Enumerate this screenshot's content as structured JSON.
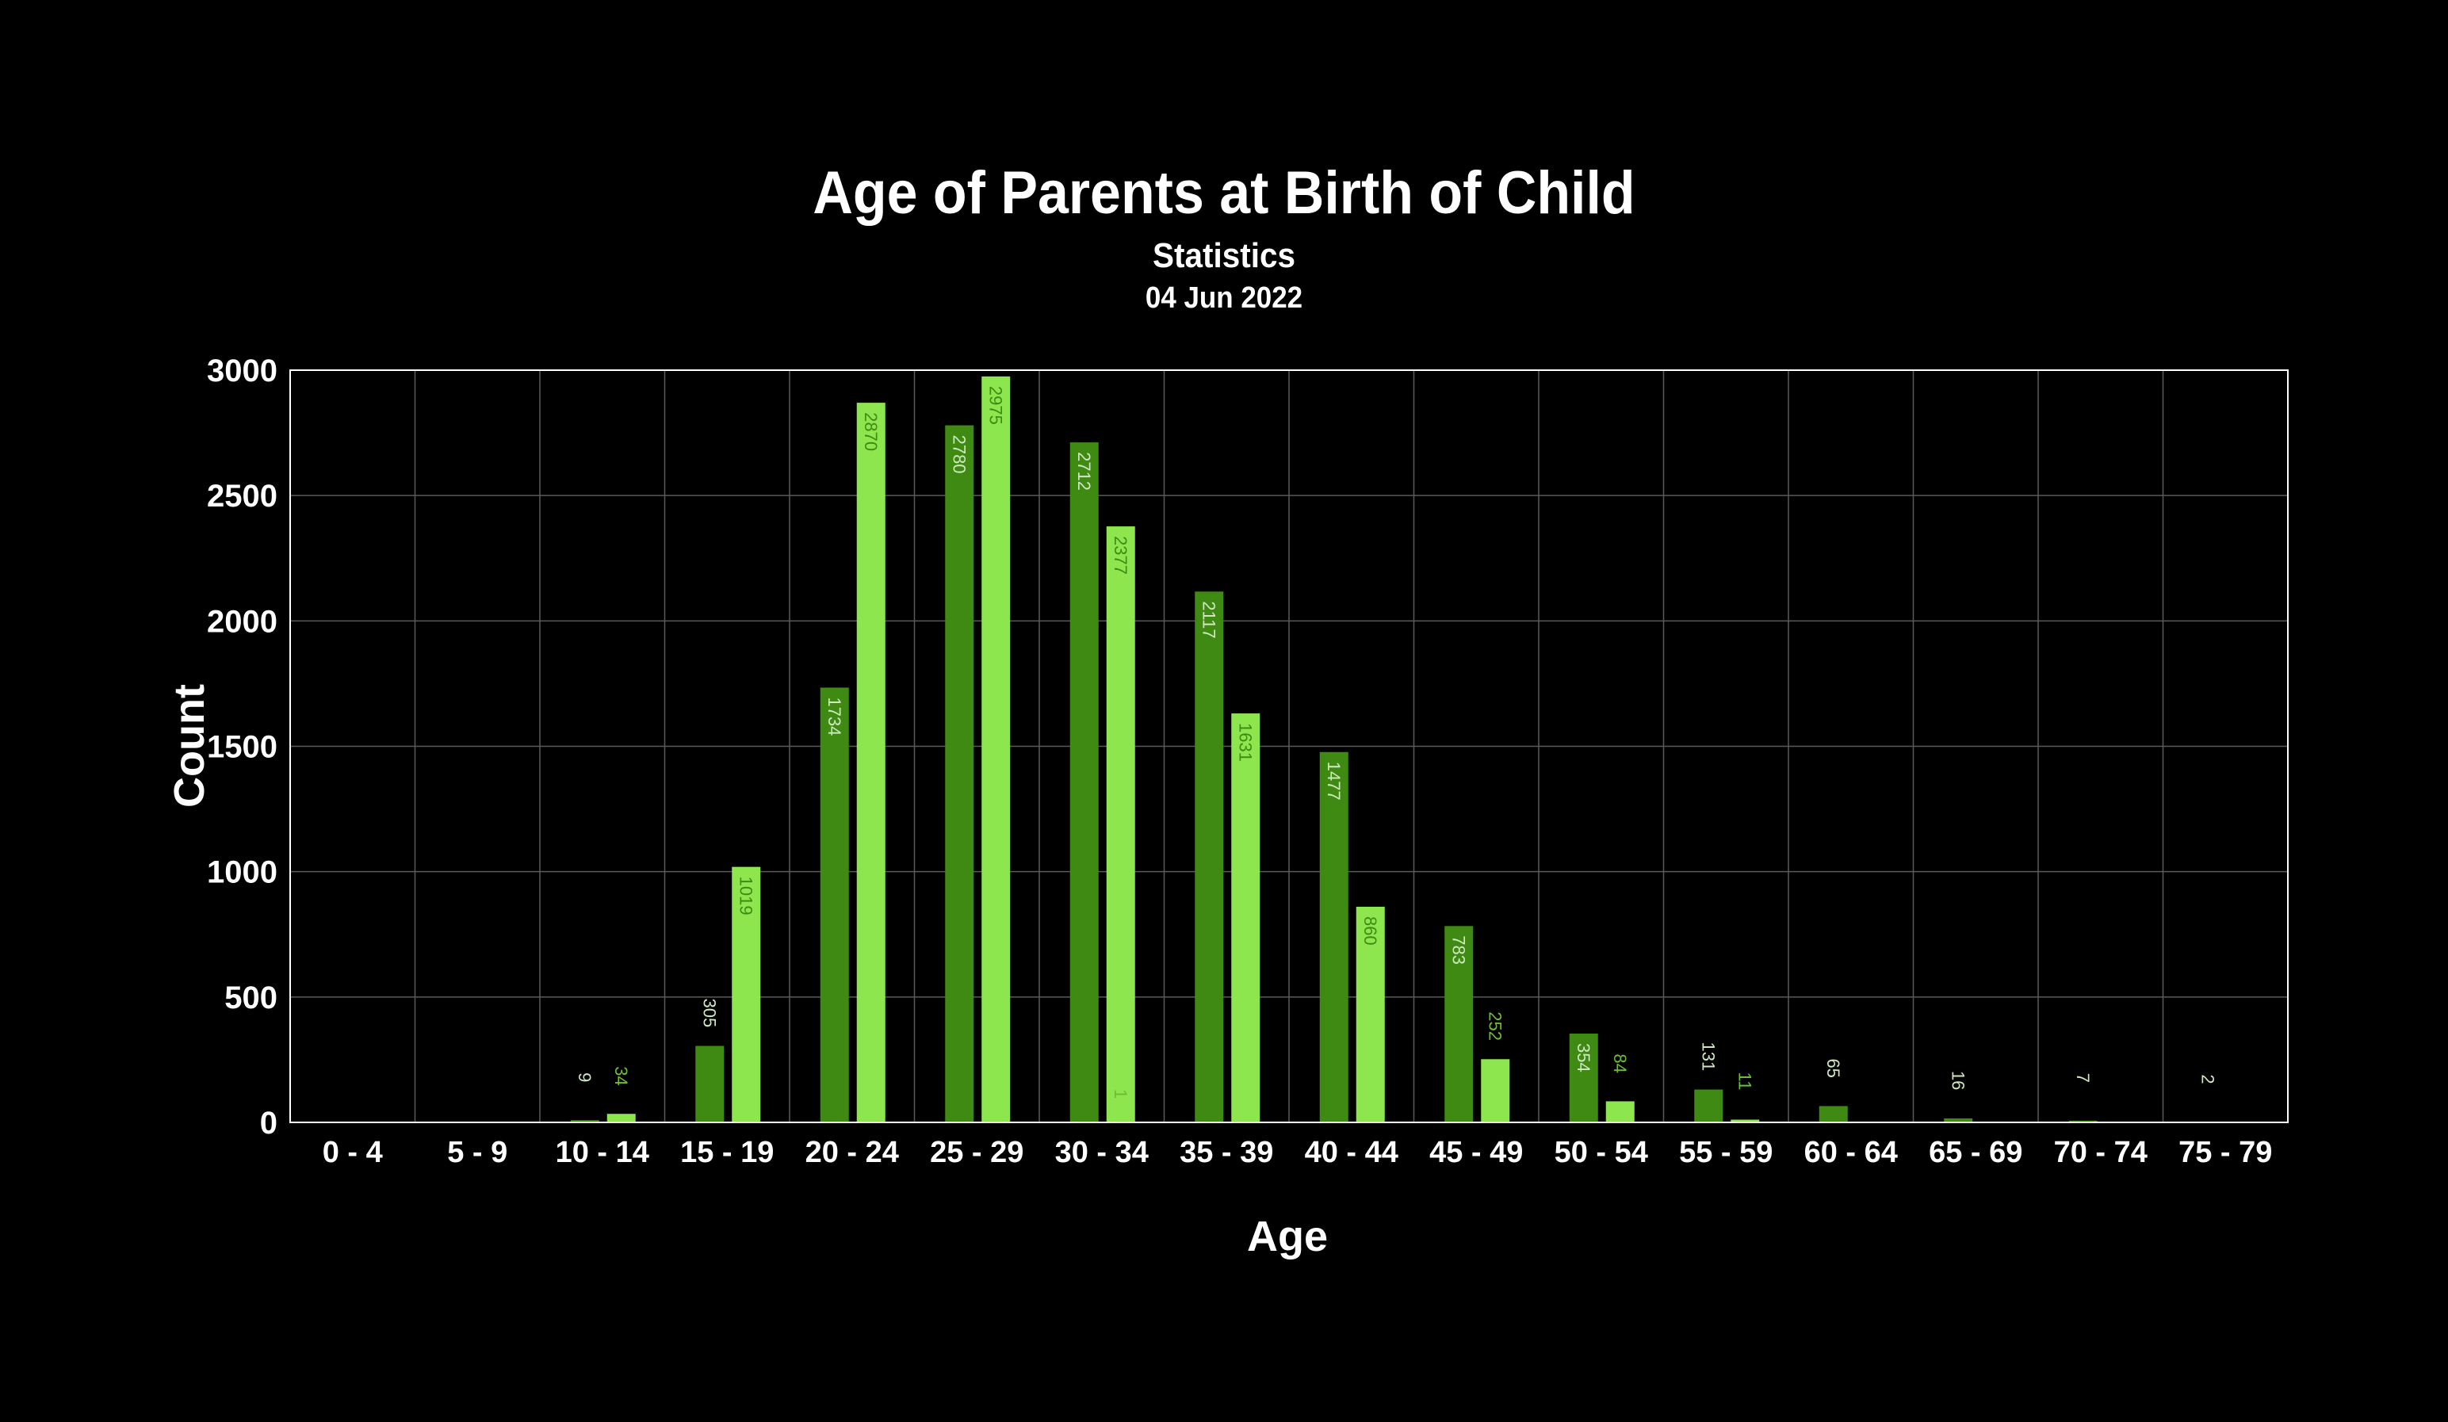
{
  "chart_data": {
    "type": "bar",
    "title": "Age of Parents at Birth of Child",
    "subtitle": "Statistics",
    "date": "04 Jun 2022",
    "xlabel": "Age",
    "ylabel": "Count",
    "ylim": [
      0,
      3000
    ],
    "yticks": [
      "0",
      "500",
      "1000",
      "1500",
      "2000",
      "2500",
      "3000"
    ],
    "categories": [
      "0 - 4",
      "5 - 9",
      "10 - 14",
      "15 - 19",
      "20 - 24",
      "25 - 29",
      "30 - 34",
      "35 - 39",
      "40 - 44",
      "45 - 49",
      "50 - 54",
      "55 - 59",
      "60 - 64",
      "65 - 69",
      "70 - 74",
      "75 - 79"
    ],
    "series": [
      {
        "values": [
          0,
          0,
          9,
          305,
          1734,
          2780,
          2712,
          2117,
          1477,
          783,
          354,
          131,
          65,
          16,
          7,
          2
        ],
        "color": "#3f8a13"
      },
      {
        "values": [
          0,
          0,
          34,
          1019,
          2870,
          2975,
          2377,
          1631,
          860,
          252,
          84,
          11,
          0,
          0,
          0,
          0
        ],
        "color": "#8ee64f"
      }
    ],
    "extra_labels": [
      {
        "category": "30 - 34",
        "series": 1,
        "offset": 1,
        "text": "1"
      }
    ],
    "grid": true,
    "legend": "none",
    "colors": {
      "background": "#000000",
      "grid": "#5a5a5a",
      "frame": "#ffffff",
      "text": "#ffffff"
    }
  }
}
